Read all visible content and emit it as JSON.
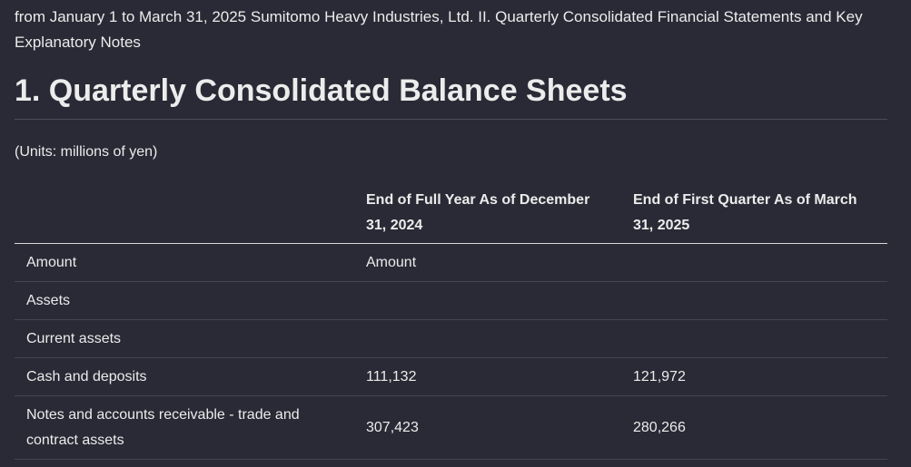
{
  "intro": "from January 1 to March 31, 2025 Sumitomo Heavy Industries, Ltd. II. Quarterly Consolidated Financial Statements and Key Explanatory Notes",
  "heading": "1. Quarterly Consolidated Balance Sheets",
  "units": "(Units: millions of yen)",
  "table": {
    "headers": [
      "End of Full Year As of December 31, 2024",
      "End of First Quarter As of March 31, 2025"
    ],
    "rows": [
      [
        "Amount",
        "Amount"
      ],
      [
        "Assets"
      ],
      [
        "Current assets"
      ],
      [
        "Cash and deposits",
        "111,132",
        "121,972"
      ],
      [
        "Notes and accounts receivable - trade and contract assets",
        "307,423",
        "280,266"
      ]
    ]
  }
}
